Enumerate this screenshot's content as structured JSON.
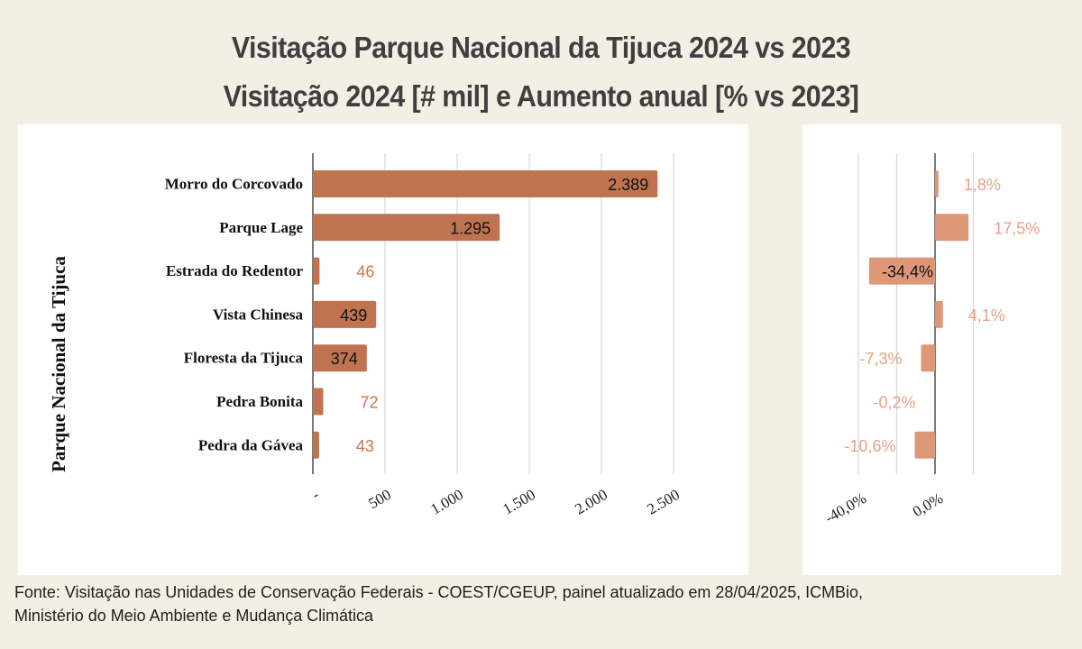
{
  "header": {
    "title": "Visitação Parque Nacional da Tijuca 2024 vs 2023",
    "subtitle": "Visitação 2024 [# mil] e Aumento anual [% vs 2023]"
  },
  "footer": {
    "line1": "Fonte: Visitação nas Unidades de Conservação Federais - COEST/CGEUP, painel atualizado em 28/04/2025, ICMBio,",
    "line2": "Ministério do Meio Ambiente e Mudança Climática"
  },
  "colors": {
    "background": "#f3efe5",
    "panel": "#fefefe",
    "bar_visits": "#bf7350",
    "bar_change": "#de9878",
    "label_outside_visits": "#c87650",
    "label_outside_change": "#e3a386",
    "grid": "#d9d9d9",
    "axis": "#333333"
  },
  "chart_data": [
    {
      "type": "bar",
      "orientation": "horizontal",
      "title": "Visitação 2024 [# mil]",
      "ylabel": "Parque Nacional da Tijuca",
      "xlabel": "",
      "categories": [
        "Morro do Corcovado",
        "Parque Lage",
        "Estrada do Redentor",
        "Vista Chinesa",
        "Floresta da Tijuca",
        "Pedra Bonita",
        "Pedra da Gávea"
      ],
      "values": [
        2389,
        1295,
        46,
        439,
        374,
        72,
        43
      ],
      "value_labels": [
        "2.389",
        "1.295",
        "46",
        "439",
        "374",
        "72",
        "43"
      ],
      "xlim": [
        0,
        2500
      ],
      "xticks": [
        0,
        500,
        1000,
        1500,
        2000,
        2500
      ],
      "xtick_labels": [
        "-",
        "500",
        "1.000",
        "1.500",
        "2.000",
        "2.500"
      ],
      "grid": true
    },
    {
      "type": "bar",
      "orientation": "horizontal",
      "title": "Aumento anual [% vs 2023]",
      "categories": [
        "Morro do Corcovado",
        "Parque Lage",
        "Estrada do Redentor",
        "Vista Chinesa",
        "Floresta da Tijuca",
        "Pedra Bonita",
        "Pedra da Gávea"
      ],
      "values": [
        1.8,
        17.5,
        -34.4,
        4.1,
        -7.3,
        -0.2,
        -10.6
      ],
      "value_labels": [
        "1,8%",
        "17,5%",
        "-34,4%",
        "4,1%",
        "-7,3%",
        "-0,2%",
        "-10,6%"
      ],
      "xlim": [
        -40,
        20
      ],
      "gridlines": [
        -40,
        -20,
        0,
        20
      ],
      "xticks": [
        -40,
        0
      ],
      "xtick_labels": [
        "-40,0%",
        "0,0%"
      ],
      "grid": true
    }
  ]
}
